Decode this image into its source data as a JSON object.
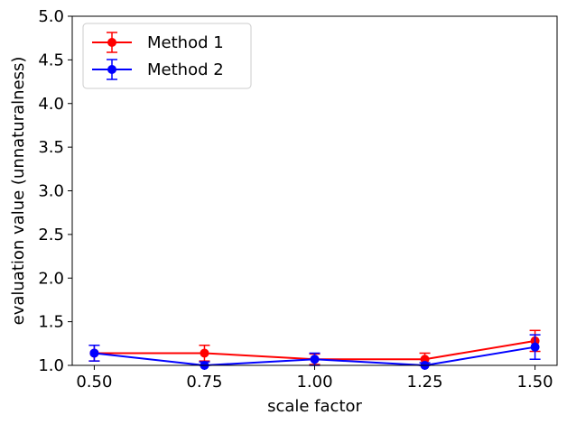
{
  "chart_data": {
    "type": "line",
    "xlabel": "scale factor",
    "ylabel": "evaluation value (unnaturalness)",
    "x": [
      0.5,
      0.75,
      1.0,
      1.25,
      1.5
    ],
    "xtick_labels": [
      "0.50",
      "0.75",
      "1.00",
      "1.25",
      "1.50"
    ],
    "xlim": [
      0.45,
      1.55
    ],
    "ylim": [
      1.0,
      5.0
    ],
    "yticks": [
      1.0,
      1.5,
      2.0,
      2.5,
      3.0,
      3.5,
      4.0,
      4.5,
      5.0
    ],
    "ytick_labels": [
      "1.0",
      "1.5",
      "2.0",
      "2.5",
      "3.0",
      "3.5",
      "4.0",
      "4.5",
      "5.0"
    ],
    "grid": false,
    "legend_position": "top-left",
    "series": [
      {
        "name": "Method 1",
        "color": "#ff0000",
        "values": [
          1.14,
          1.14,
          1.07,
          1.07,
          1.28
        ],
        "error": [
          0.09,
          0.09,
          0.06,
          0.07,
          0.12
        ]
      },
      {
        "name": "Method 2",
        "color": "#0000ff",
        "values": [
          1.14,
          1.0,
          1.07,
          1.0,
          1.21
        ],
        "error": [
          0.09,
          0.04,
          0.07,
          0.03,
          0.14
        ]
      }
    ]
  }
}
